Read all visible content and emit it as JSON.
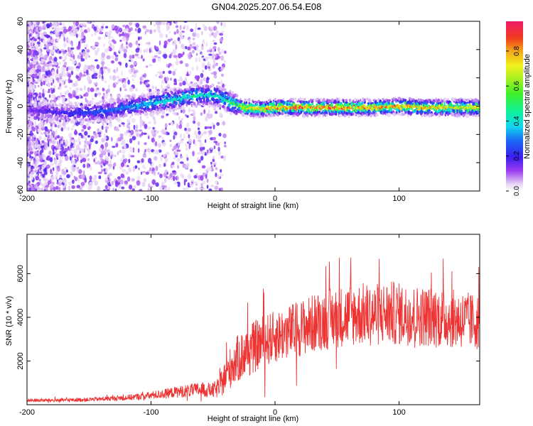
{
  "figure": {
    "title": "GN04.2025.207.06.54.E08"
  },
  "chart_data": [
    {
      "type": "heatmap",
      "title": "GN04.2025.207.06.54.E08",
      "xlabel": "Height of straight line (km)",
      "ylabel": "Frequency (Hz)",
      "xlim": [
        -200,
        165
      ],
      "ylim": [
        -60,
        60
      ],
      "xticks": [
        -200,
        -100,
        0,
        100
      ],
      "yticks": [
        -60,
        -40,
        -20,
        0,
        20,
        40,
        60
      ],
      "colorbar": {
        "label": "Normalized spectral amplitude",
        "range": [
          0,
          0.97
        ],
        "ticks": [
          "0.0",
          "0.2",
          "0.4",
          "0.6",
          "0.8"
        ],
        "colormap": "rainbow (white-purple-blue-cyan-green-yellow-red-magenta)"
      },
      "ridge": {
        "description": "dominant frequency vs height",
        "x": [
          -200,
          -180,
          -160,
          -140,
          -120,
          -100,
          -80,
          -60,
          -45,
          -35,
          -25,
          -10,
          0,
          20,
          40,
          60,
          80,
          100,
          120,
          140,
          160
        ],
        "y": [
          -3,
          -4,
          -5,
          -4,
          -1,
          2,
          5,
          8,
          7,
          2,
          -1,
          -2,
          -1,
          -1,
          -1,
          -1,
          -1,
          0,
          -1,
          -1,
          -1
        ],
        "peak_amplitude": [
          0.15,
          0.2,
          0.25,
          0.3,
          0.35,
          0.4,
          0.45,
          0.5,
          0.45,
          0.55,
          0.7,
          0.85,
          0.9,
          0.92,
          0.9,
          0.88,
          0.85,
          0.87,
          0.85,
          0.83,
          0.8
        ]
      },
      "grid": false
    },
    {
      "type": "line",
      "xlabel": "Height of straight line (km)",
      "ylabel": "SNR (10 * v/v)",
      "xlim": [
        -200,
        165
      ],
      "ylim": [
        0,
        7800
      ],
      "xticks": [
        -200,
        -100,
        0,
        100
      ],
      "yticks": [
        2000,
        4000,
        6000
      ],
      "color": "#ee3333",
      "x": [
        -200,
        -180,
        -160,
        -140,
        -120,
        -100,
        -90,
        -80,
        -70,
        -60,
        -50,
        -45,
        -40,
        -35,
        -30,
        -25,
        -20,
        -15,
        -10,
        -5,
        0,
        10,
        20,
        30,
        40,
        50,
        60,
        70,
        80,
        90,
        100,
        110,
        120,
        130,
        140,
        150,
        160,
        165
      ],
      "y": [
        200,
        200,
        220,
        260,
        320,
        420,
        500,
        580,
        640,
        700,
        650,
        800,
        1300,
        1800,
        2100,
        2300,
        2500,
        2700,
        2900,
        3000,
        3100,
        3300,
        3500,
        3700,
        3900,
        4000,
        4100,
        4150,
        4100,
        4200,
        4150,
        4100,
        4050,
        4000,
        3950,
        3900,
        3800,
        3800
      ],
      "noise_amplitude": [
        80,
        80,
        90,
        100,
        130,
        180,
        220,
        260,
        300,
        330,
        350,
        500,
        800,
        1000,
        1100,
        1200,
        1200,
        1200,
        1200,
        1200,
        1200,
        1250,
        1300,
        1350,
        1400,
        1400,
        1450,
        1450,
        1450,
        1500,
        1450,
        1400,
        1400,
        1400,
        1350,
        1350,
        1300,
        1300
      ],
      "grid": false
    }
  ]
}
